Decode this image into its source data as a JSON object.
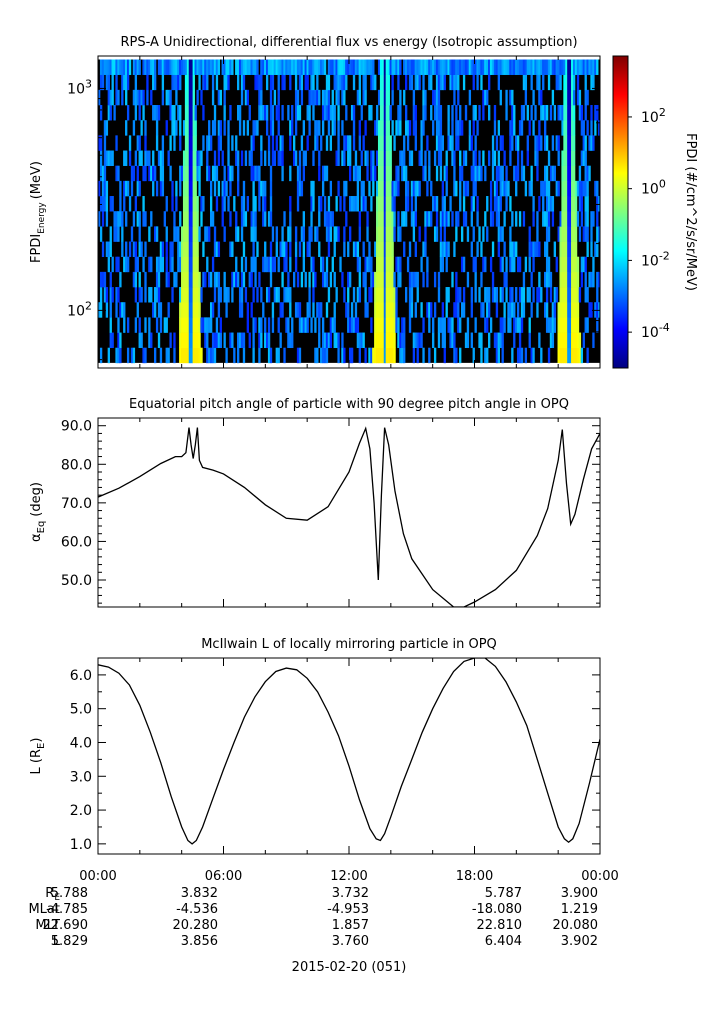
{
  "chart_data": [
    {
      "type": "heatmap",
      "title": "RPS-A Unidirectional, differential flux vs energy (Isotropic assumption)",
      "ylabel": "FPDI",
      "ylabel_sub": "Energy",
      "ylabel_unit": "(MeV)",
      "yscale": "log",
      "ylim": [
        55,
        1400
      ],
      "yticks": [
        {
          "value": 100,
          "base": "10",
          "exp": "2"
        },
        {
          "value": 1000,
          "base": "10",
          "exp": "3"
        }
      ],
      "energy_range": [
        58,
        1350
      ],
      "energy_channels": 20,
      "background_color": "#000000",
      "band_centers_hours": [
        4.4,
        13.7,
        22.5
      ],
      "colorbar": {
        "label": "FPDI (#/cm^2/s/sr/MeV)",
        "scale": "log",
        "range": [
          1e-05,
          5000
        ],
        "ticks": [
          {
            "value": 100,
            "base": "10",
            "exp": "2"
          },
          {
            "value": 1,
            "base": "10",
            "exp": "0"
          },
          {
            "value": 0.01,
            "base": "10",
            "exp": "-2"
          },
          {
            "value": 0.0001,
            "base": "10",
            "exp": "-4"
          }
        ],
        "colors": [
          "#00007f",
          "#0000ff",
          "#007fff",
          "#00ffff",
          "#7fff7f",
          "#ffff00",
          "#ff7f00",
          "#ff0000",
          "#7f0000"
        ]
      }
    },
    {
      "type": "line",
      "title": "Equatorial pitch angle of particle with 90 degree pitch angle in OPQ",
      "ylabel": "α",
      "ylabel_sub": "Eq",
      "ylabel_unit": "(deg)",
      "ylim": [
        43,
        92
      ],
      "yticks": [
        50,
        60,
        70,
        80,
        90
      ],
      "x_hours": [
        0,
        1,
        2,
        3,
        3.7,
        4.0,
        4.2,
        4.35,
        4.45,
        4.55,
        4.65,
        4.75,
        4.85,
        5.0,
        5.5,
        6,
        7,
        8,
        9,
        10,
        11,
        12,
        12.5,
        12.8,
        13.0,
        13.2,
        13.4,
        13.55,
        13.7,
        13.9,
        14.2,
        14.6,
        15,
        16,
        17,
        17.5,
        18,
        19,
        20,
        21,
        21.5,
        22.0,
        22.2,
        22.4,
        22.6,
        22.8,
        23.2,
        23.6,
        24
      ],
      "y_deg": [
        71.5,
        73.8,
        76.8,
        80.2,
        82,
        82,
        83,
        89.5,
        85,
        81.5,
        85,
        89.5,
        81,
        79.2,
        78.5,
        77.5,
        74,
        69.5,
        66,
        65.5,
        69,
        78,
        85.5,
        89.3,
        84,
        70,
        50,
        72,
        89.5,
        85,
        73,
        62,
        55.5,
        47.5,
        43,
        43,
        44.3,
        47.5,
        52.5,
        61.5,
        68.5,
        81,
        89,
        75,
        64.5,
        67,
        76,
        84,
        88
      ]
    },
    {
      "type": "line",
      "title": "McIlwain L of locally mirroring particle in OPQ",
      "ylabel": "L (R",
      "ylabel_sub": "E",
      "ylabel_unit": ")",
      "ylim": [
        0.7,
        6.5
      ],
      "yticks": [
        1,
        2,
        3,
        4,
        5,
        6
      ],
      "x_hours": [
        0,
        0.5,
        1,
        1.5,
        2,
        2.5,
        3,
        3.5,
        4.0,
        4.3,
        4.5,
        4.7,
        5.0,
        5.5,
        6,
        6.5,
        7,
        7.5,
        8,
        8.5,
        9,
        9.5,
        10,
        10.5,
        11,
        11.5,
        12,
        12.5,
        13.0,
        13.3,
        13.5,
        13.7,
        14.0,
        14.5,
        15,
        15.5,
        16,
        16.5,
        17,
        17.5,
        18,
        18.5,
        19,
        19.5,
        20,
        20.5,
        21,
        21.5,
        22.0,
        22.3,
        22.5,
        22.7,
        23.0,
        23.5,
        24
      ],
      "y_re": [
        6.3,
        6.23,
        6.05,
        5.7,
        5.1,
        4.3,
        3.4,
        2.4,
        1.5,
        1.1,
        1.0,
        1.1,
        1.5,
        2.35,
        3.2,
        4.0,
        4.75,
        5.35,
        5.8,
        6.1,
        6.2,
        6.15,
        5.9,
        5.5,
        4.9,
        4.2,
        3.3,
        2.3,
        1.45,
        1.15,
        1.1,
        1.3,
        1.8,
        2.7,
        3.5,
        4.3,
        5.0,
        5.6,
        6.1,
        6.4,
        6.5,
        6.5,
        6.25,
        5.8,
        5.2,
        4.5,
        3.5,
        2.5,
        1.5,
        1.15,
        1.05,
        1.15,
        1.6,
        2.8,
        4.1
      ]
    }
  ],
  "time_axis": {
    "labels": [
      "00:00",
      "06:00",
      "12:00",
      "18:00",
      "00:00"
    ],
    "label_hours": [
      0,
      6,
      12,
      18,
      24
    ],
    "minor_step_hours": 2,
    "date": "2015-02-20 (051)"
  },
  "ephemeris": {
    "rows": [
      {
        "name_base": "R",
        "name_sub": "E",
        "values": [
          "5.788",
          "3.832",
          "3.732",
          "5.787",
          "3.900"
        ]
      },
      {
        "name_base": "MLat",
        "name_sub": "",
        "values": [
          "-4.785",
          "-4.536",
          "-4.953",
          "-18.080",
          "1.219"
        ]
      },
      {
        "name_base": "MLT",
        "name_sub": "",
        "values": [
          "22.690",
          "20.280",
          "1.857",
          "22.810",
          "20.080"
        ]
      },
      {
        "name_base": "L",
        "name_sub": "",
        "values": [
          "5.829",
          "3.856",
          "3.760",
          "6.404",
          "3.902"
        ]
      }
    ]
  }
}
